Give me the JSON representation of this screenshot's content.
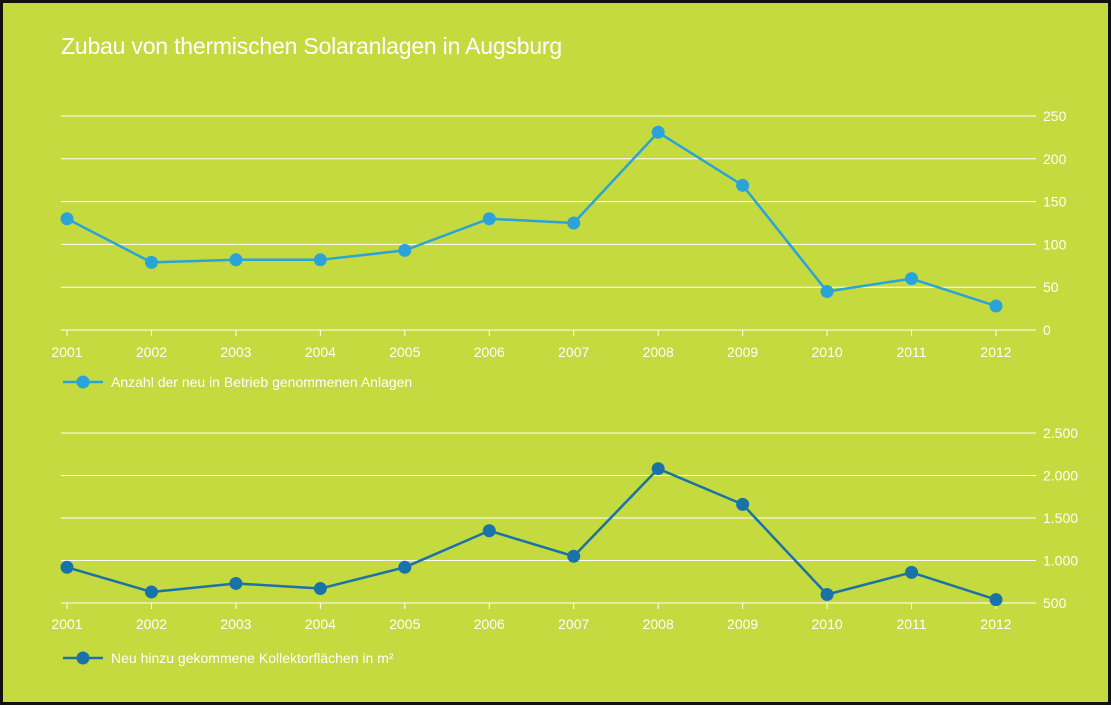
{
  "chart_data": [
    {
      "type": "line",
      "title": "Zubau von thermischen Solaranlagen in Augsburg",
      "categories": [
        "2001",
        "2002",
        "2003",
        "2004",
        "2005",
        "2006",
        "2007",
        "2008",
        "2009",
        "2010",
        "2011",
        "2012"
      ],
      "series": [
        {
          "name": "Anzahl der neu in Betrieb genommenen Anlagen",
          "values": [
            130,
            79,
            82,
            82,
            93,
            130,
            125,
            231,
            169,
            45,
            60,
            28
          ],
          "color": "#2aa4d8"
        }
      ],
      "ylim": [
        0,
        250
      ],
      "yticks": [
        "0",
        "50",
        "100",
        "150",
        "200",
        "250"
      ],
      "ytick_values": [
        0,
        50,
        100,
        150,
        200,
        250
      ],
      "grid": true,
      "y_axis_side": "right",
      "legend": "bottom-left"
    },
    {
      "type": "line",
      "categories": [
        "2001",
        "2002",
        "2003",
        "2004",
        "2005",
        "2006",
        "2007",
        "2008",
        "2009",
        "2010",
        "2011",
        "2012"
      ],
      "series": [
        {
          "name": "Neu hinzu gekommene Kollektorflächen in m²",
          "values": [
            920,
            630,
            730,
            670,
            920,
            1350,
            1050,
            2080,
            1660,
            600,
            860,
            540
          ],
          "color": "#1a73a8"
        }
      ],
      "ylim": [
        500,
        2500
      ],
      "yticks": [
        "500",
        "1.000",
        "1.500",
        "2.000",
        "2.500"
      ],
      "ytick_values": [
        500,
        1000,
        1500,
        2000,
        2500
      ],
      "grid": true,
      "y_axis_side": "right",
      "legend": "bottom-left"
    }
  ]
}
